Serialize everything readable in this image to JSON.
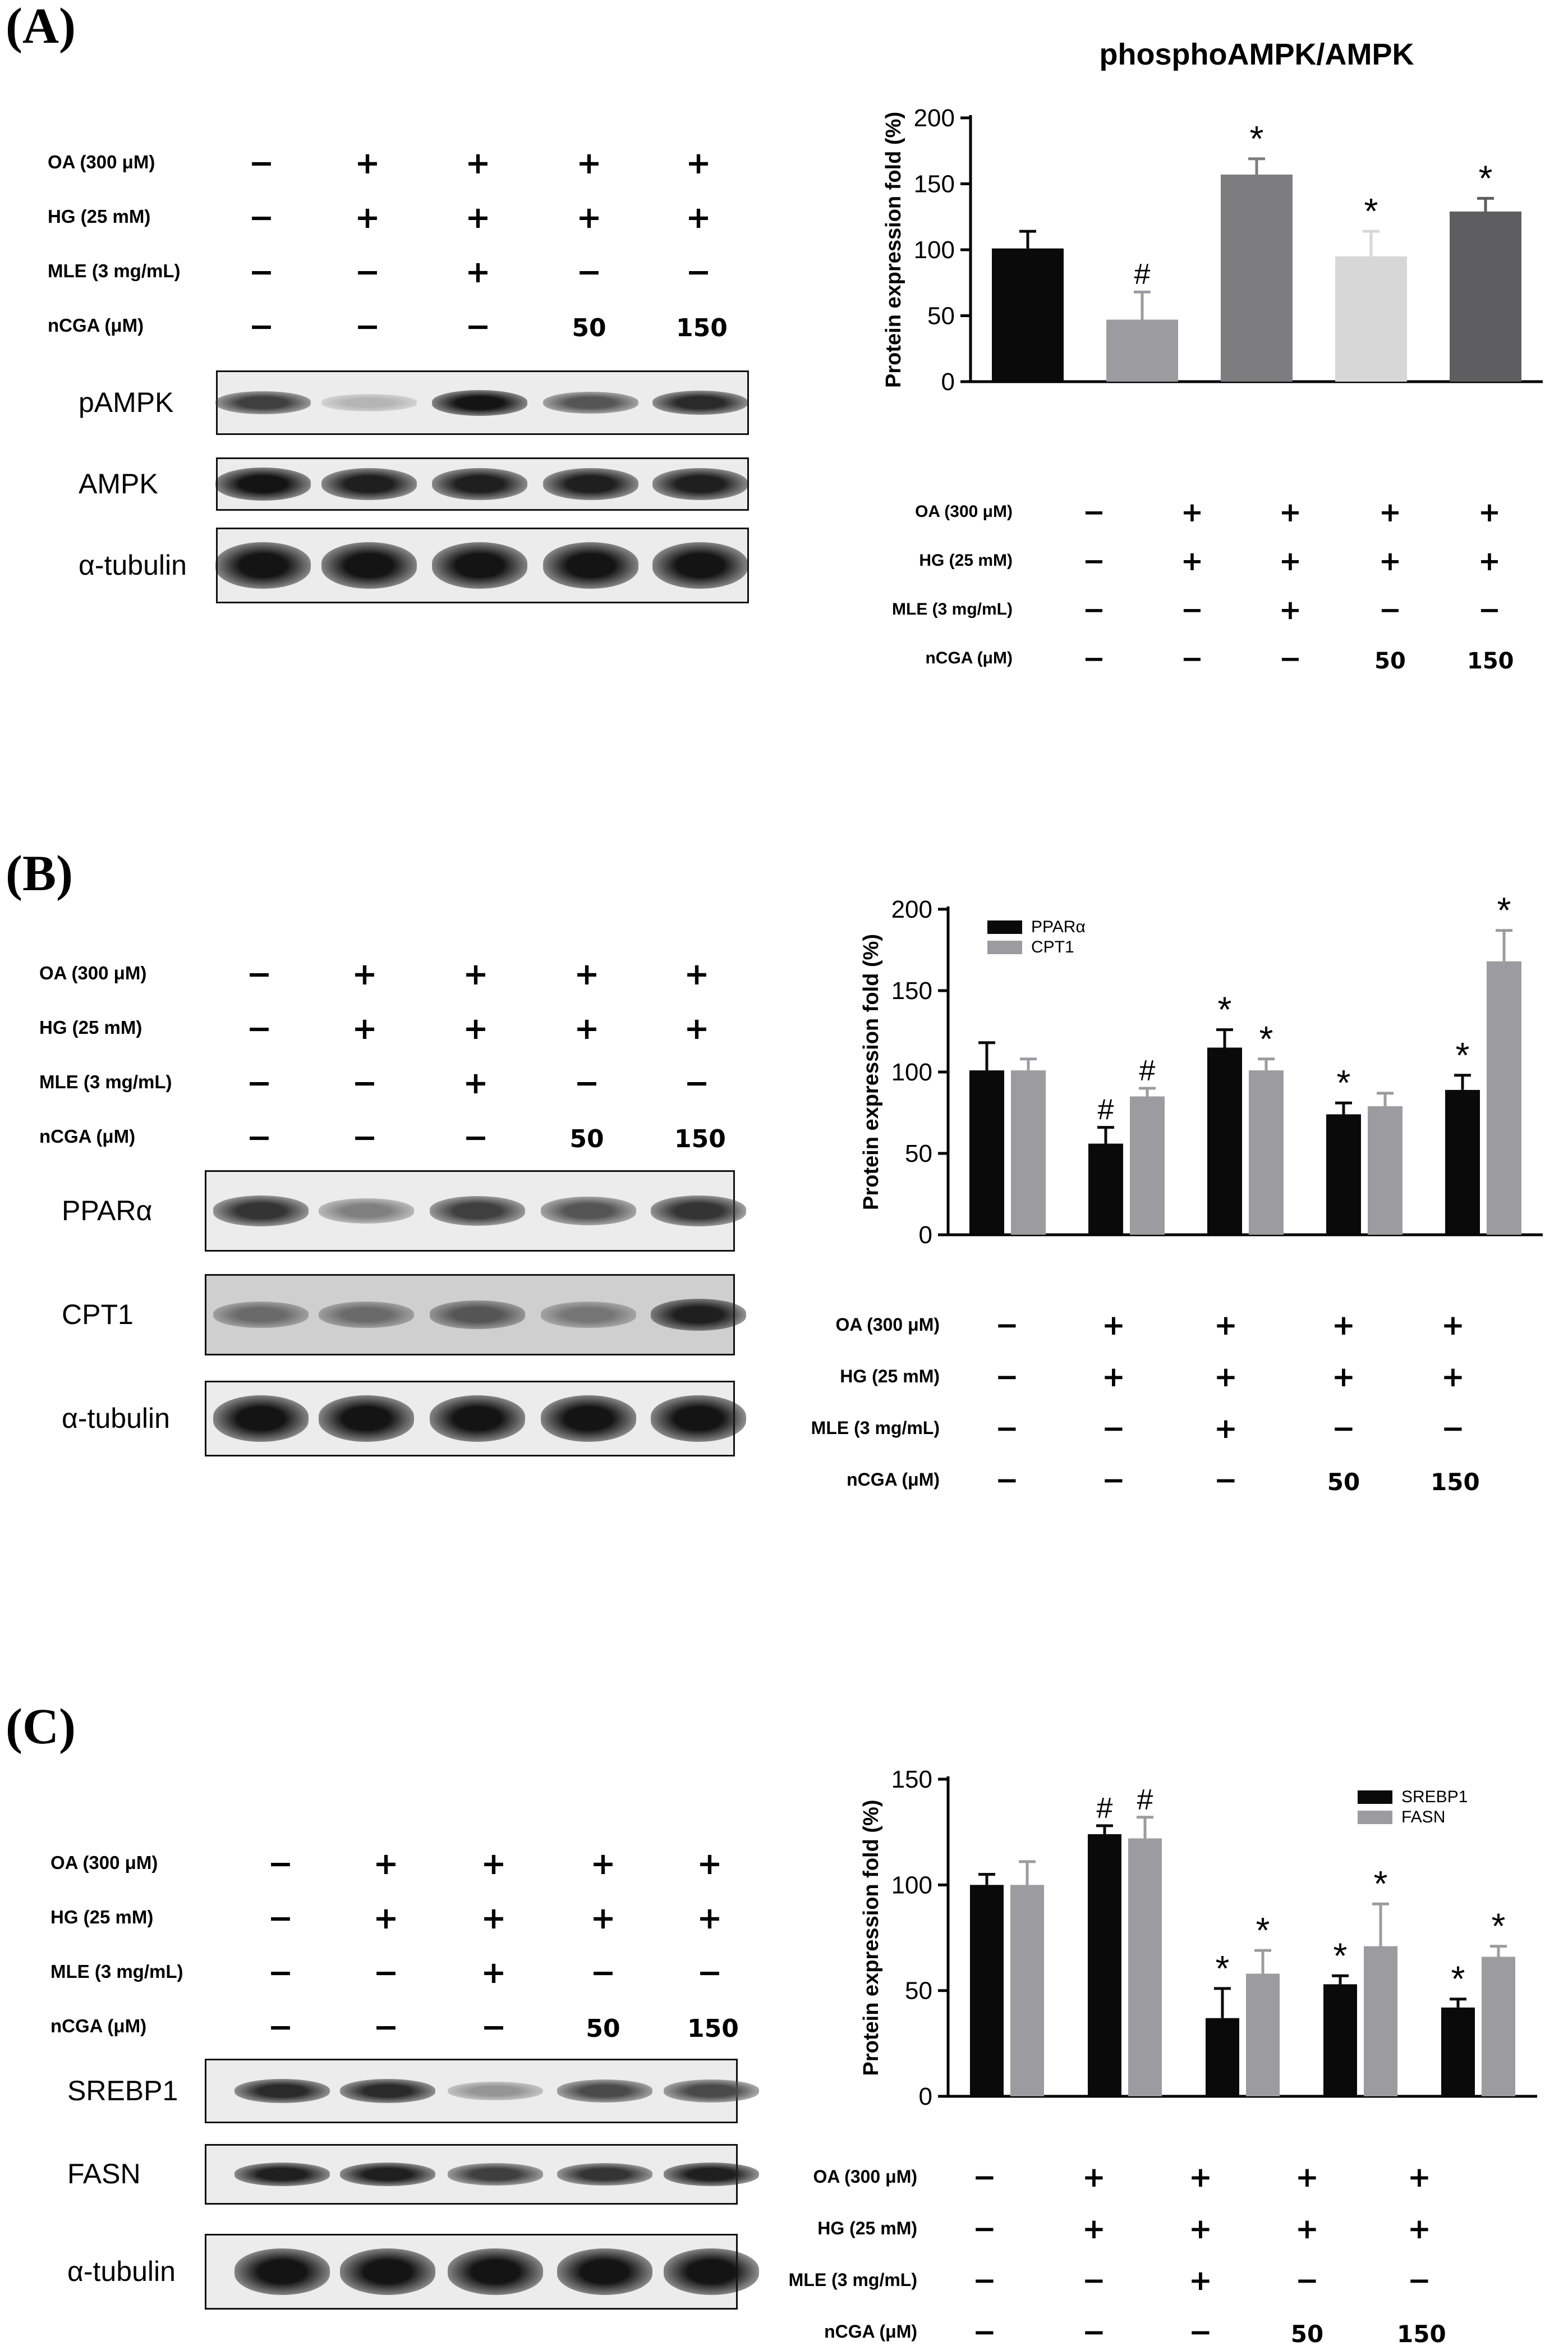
{
  "treatments": {
    "labels": [
      "OA (300 μM)",
      "HG (25 mM)",
      "MLE (3 mg/mL)",
      "nCGA (μM)"
    ],
    "rows": [
      [
        "−",
        "+",
        "+",
        "+",
        "+"
      ],
      [
        "−",
        "+",
        "+",
        "+",
        "+"
      ],
      [
        "−",
        "−",
        "+",
        "−",
        "−"
      ],
      [
        "−",
        "−",
        "−",
        "50",
        "150"
      ]
    ]
  },
  "panels": [
    {
      "letter": "(A)",
      "blots": [
        {
          "label": "pAMPK",
          "intensity": [
            0.8,
            0.25,
            1.0,
            0.7,
            0.9
          ],
          "style": "thin"
        },
        {
          "label": "AMPK",
          "intensity": [
            1.0,
            0.95,
            0.95,
            0.95,
            0.95
          ],
          "style": "thick"
        },
        {
          "label": "α-tubulin",
          "intensity": [
            1.0,
            1.0,
            1.0,
            1.0,
            1.0
          ],
          "style": "thick"
        }
      ]
    },
    {
      "letter": "(B)",
      "blots": [
        {
          "label": "PPARα",
          "intensity": [
            0.85,
            0.5,
            0.8,
            0.7,
            0.85
          ],
          "style": "thin"
        },
        {
          "label": "CPT1",
          "intensity": [
            0.6,
            0.6,
            0.7,
            0.55,
            0.95
          ],
          "style": "noisy"
        },
        {
          "label": "α-tubulin",
          "intensity": [
            1.0,
            1.0,
            1.0,
            1.0,
            1.0
          ],
          "style": "thick"
        }
      ]
    },
    {
      "letter": "(C)",
      "blots": [
        {
          "label": "SREBP1",
          "intensity": [
            0.9,
            0.9,
            0.4,
            0.75,
            0.75
          ],
          "style": "thin"
        },
        {
          "label": "FASN",
          "intensity": [
            0.95,
            0.95,
            0.8,
            0.85,
            0.95
          ],
          "style": "thin"
        },
        {
          "label": "α-tubulin",
          "intensity": [
            1.0,
            1.0,
            1.0,
            1.0,
            1.0
          ],
          "style": "thick"
        }
      ]
    }
  ],
  "chart_data": [
    {
      "type": "bar",
      "title": "phosphoAMPK/AMPK",
      "ylabel": "Protein expression fold (%)",
      "ylim": [
        0,
        200
      ],
      "yticks": [
        0,
        50,
        100,
        150,
        200
      ],
      "series": [
        {
          "values": [
            101,
            47,
            157,
            95,
            129
          ],
          "errors": [
            13,
            21,
            12,
            19,
            10
          ],
          "colors": [
            "#0a0a0a",
            "#9c9ca0",
            "#7d7d80",
            "#d7d7d8",
            "#5e5e60"
          ],
          "marks": [
            "",
            "#",
            "*",
            "*",
            "*"
          ]
        }
      ],
      "legend": "none"
    },
    {
      "type": "bar",
      "title": "",
      "ylabel": "Protein expression fold (%)",
      "ylim": [
        0,
        200
      ],
      "yticks": [
        0,
        50,
        100,
        150,
        200
      ],
      "series": [
        {
          "name": "PPARα",
          "color": "#0a0a0a",
          "values": [
            101,
            56,
            115,
            74,
            89
          ],
          "errors": [
            17,
            10,
            11,
            7,
            9
          ],
          "marks": [
            "",
            "#",
            "*",
            "*",
            "*"
          ]
        },
        {
          "name": "CPT1",
          "color": "#9c9ca0",
          "values": [
            101,
            85,
            101,
            79,
            168
          ],
          "errors": [
            7,
            5,
            7,
            8,
            19
          ],
          "marks": [
            "",
            "#",
            "*",
            "",
            "*"
          ]
        }
      ],
      "legend": "top-left"
    },
    {
      "type": "bar",
      "title": "",
      "ylabel": "Protein expression fold (%)",
      "ylim": [
        0,
        150
      ],
      "yticks": [
        0,
        50,
        100,
        150
      ],
      "series": [
        {
          "name": "SREBP1",
          "color": "#0a0a0a",
          "values": [
            100,
            124,
            37,
            53,
            42
          ],
          "errors": [
            5,
            4,
            14,
            4,
            4
          ],
          "marks": [
            "",
            "#",
            "*",
            "*",
            "*"
          ]
        },
        {
          "name": "FASN",
          "color": "#9c9ca0",
          "values": [
            100,
            122,
            58,
            71,
            66
          ],
          "errors": [
            11,
            10,
            11,
            20,
            5
          ],
          "marks": [
            "",
            "#",
            "*",
            "*",
            "*"
          ]
        }
      ],
      "legend": "top-right"
    }
  ]
}
